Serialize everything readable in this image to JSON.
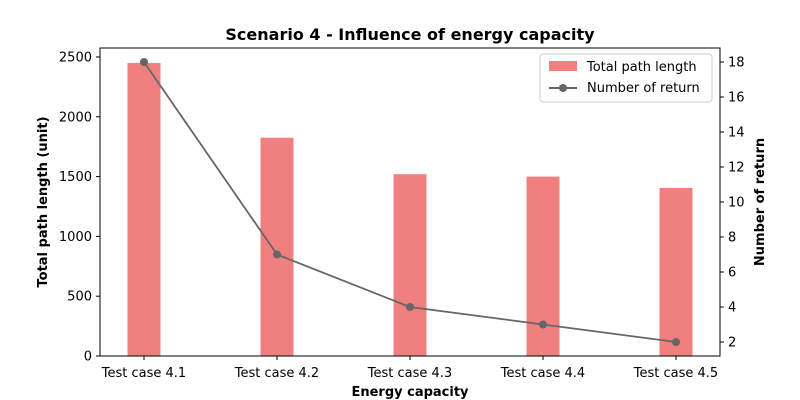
{
  "chart_data": {
    "type": "bar",
    "title": "Scenario 4 - Influence of energy capacity",
    "xlabel": "Energy capacity",
    "ylabel": "Total path length (unit)",
    "y2label": "Number of return",
    "categories": [
      "Test case 4.1",
      "Test case 4.2",
      "Test case 4.3",
      "Test case 4.4",
      "Test case 4.5"
    ],
    "series": [
      {
        "name": "Total path length",
        "type": "bar",
        "axis": "left",
        "color": "#f08080",
        "values": [
          2450,
          1825,
          1520,
          1500,
          1405
        ]
      },
      {
        "name": "Number of return",
        "type": "line",
        "axis": "right",
        "color": "#666666",
        "marker": "circle",
        "values": [
          18,
          7,
          4,
          3,
          2
        ]
      }
    ],
    "ylim": [
      0,
      2575
    ],
    "y2lim": [
      1.2,
      18.8
    ],
    "yticks": [
      0,
      500,
      1000,
      1500,
      2000,
      2500
    ],
    "y2ticks": [
      2,
      4,
      6,
      8,
      10,
      12,
      14,
      16,
      18
    ],
    "grid": false,
    "legend": "top-right"
  }
}
